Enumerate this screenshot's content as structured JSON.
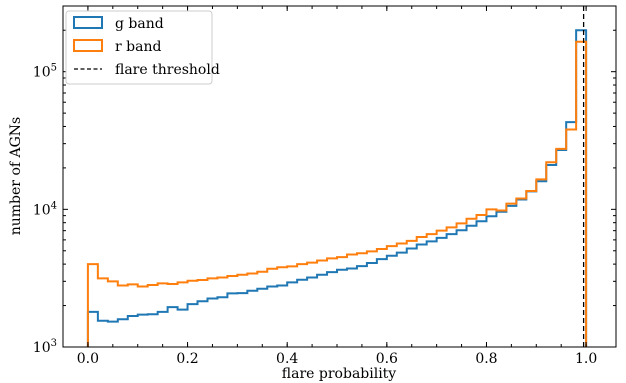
{
  "chart_data": {
    "type": "step",
    "xlabel": "flare probability",
    "ylabel": "number of AGNs",
    "xlim": [
      -0.05,
      1.06
    ],
    "ylim": [
      1000,
      300000
    ],
    "yscale": "log",
    "grid": false,
    "legend_position": "top-left",
    "x_ticks": [
      0.0,
      0.2,
      0.4,
      0.6,
      0.8,
      1.0
    ],
    "x_tick_labels": [
      "0.0",
      "0.2",
      "0.4",
      "0.6",
      "0.8",
      "1.0"
    ],
    "y_ticks": [
      1000,
      10000,
      100000
    ],
    "y_tick_labels": [
      {
        "base": "10",
        "exp": "3"
      },
      {
        "base": "10",
        "exp": "4"
      },
      {
        "base": "10",
        "exp": "5"
      }
    ],
    "bin_edges": [
      0.0,
      0.02,
      0.04,
      0.06,
      0.08,
      0.1,
      0.12,
      0.14,
      0.16,
      0.18,
      0.2,
      0.22,
      0.24,
      0.26,
      0.28,
      0.3,
      0.32,
      0.34,
      0.36,
      0.38,
      0.4,
      0.42,
      0.44,
      0.46,
      0.48,
      0.5,
      0.52,
      0.54,
      0.56,
      0.58,
      0.6,
      0.62,
      0.64,
      0.66,
      0.68,
      0.7,
      0.72,
      0.74,
      0.76,
      0.78,
      0.8,
      0.82,
      0.84,
      0.86,
      0.88,
      0.9,
      0.92,
      0.94,
      0.96,
      0.98,
      1.0
    ],
    "series": [
      {
        "name": "g band",
        "color": "#1f77b4",
        "values": [
          1800,
          1550,
          1530,
          1590,
          1680,
          1720,
          1730,
          1800,
          1950,
          1870,
          2050,
          2150,
          2250,
          2300,
          2450,
          2460,
          2560,
          2650,
          2750,
          2800,
          2950,
          3080,
          3200,
          3350,
          3500,
          3640,
          3720,
          3870,
          4080,
          4350,
          4600,
          4850,
          5200,
          5550,
          5850,
          6200,
          6600,
          7050,
          7600,
          8200,
          8900,
          9600,
          10600,
          11800,
          13500,
          16000,
          21000,
          27000,
          43000,
          200000
        ]
      },
      {
        "name": "r band",
        "color": "#ff7f0e",
        "values": [
          4000,
          3150,
          3000,
          2800,
          2850,
          2750,
          2820,
          2900,
          2870,
          2950,
          3030,
          3070,
          3150,
          3200,
          3280,
          3350,
          3420,
          3520,
          3700,
          3800,
          3850,
          4000,
          4100,
          4250,
          4400,
          4500,
          4700,
          4800,
          4950,
          5150,
          5400,
          5650,
          5900,
          6300,
          6600,
          7000,
          7400,
          7900,
          8550,
          9100,
          10000,
          9800,
          11000,
          12000,
          13600,
          16500,
          22000,
          27500,
          38000,
          165000
        ]
      }
    ],
    "threshold": {
      "name": "flare threshold",
      "x": 0.995,
      "color": "#000000",
      "style": "dashed"
    }
  }
}
